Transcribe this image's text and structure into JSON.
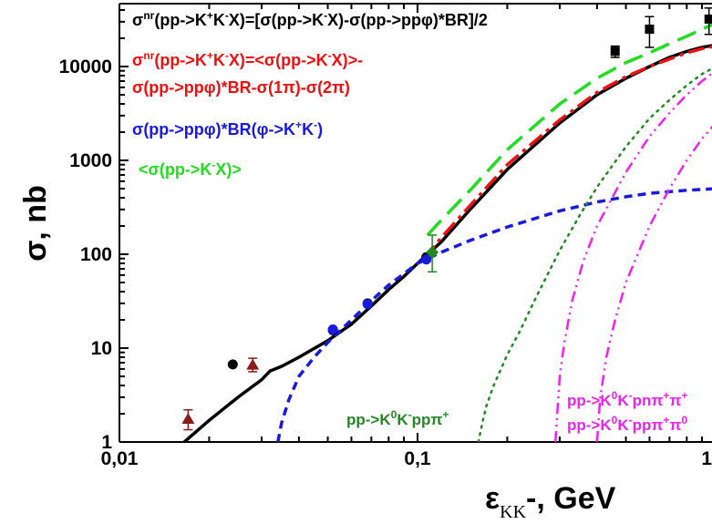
{
  "chart_data": {
    "type": "scatter",
    "x_scale": "log",
    "y_scale": "log",
    "xlim": [
      0.01,
      1.0
    ],
    "ylim": [
      1,
      40000
    ],
    "x_ticks": [
      {
        "value": 0.01,
        "label": "0,01"
      },
      {
        "value": 0.1,
        "label": "0,1"
      },
      {
        "value": 1.0,
        "label": "1"
      }
    ],
    "y_ticks": [
      {
        "value": 1,
        "label": "1"
      },
      {
        "value": 10,
        "label": "10"
      },
      {
        "value": 100,
        "label": "100"
      },
      {
        "value": 1000,
        "label": "1000"
      },
      {
        "value": 10000,
        "label": "10000"
      }
    ],
    "xlabel_main": "ε",
    "xlabel_sub": "KK",
    "xlabel_rest": "-,  GeV",
    "ylabel": "σ,  nb",
    "annotations": [
      {
        "id": "black",
        "color": "#000000",
        "lines": [
          "σnr(pp->K+K-X)=[σ(pp->K-X)-σ(pp->ppφ)*BR]/2"
        ]
      },
      {
        "id": "red",
        "color": "#ee1111",
        "lines": [
          "σnr(pp->K+K-X)=<σ(pp->K-X)>-",
          "σ(pp->ppφ)*BR-σ(1π)-σ(2π)"
        ]
      },
      {
        "id": "blue",
        "color": "#1a1adc",
        "lines": [
          "σ(pp->ppφ)*BR(φ->K+K-)"
        ]
      },
      {
        "id": "green",
        "color": "#22dd22",
        "lines": [
          "<σ(pp->K-X)>"
        ]
      },
      {
        "id": "darkgreen",
        "color": "#228822",
        "lines": [
          "pp->K0K-ppπ+"
        ]
      },
      {
        "id": "magenta1",
        "color": "#ee22ee",
        "lines": [
          "pp->K0K-pnπ+π+"
        ]
      },
      {
        "id": "magenta2",
        "color": "#ee22ee",
        "lines": [
          "pp->K0K-ppπ+π0"
        ]
      }
    ],
    "series": [
      {
        "style": "solid",
        "color": "#000000",
        "points": [
          [
            0.0165,
            1
          ],
          [
            0.02,
            1.7
          ],
          [
            0.025,
            3
          ],
          [
            0.03,
            4.6
          ],
          [
            0.032,
            5.7
          ],
          [
            0.035,
            6.4
          ],
          [
            0.04,
            8
          ],
          [
            0.05,
            12
          ],
          [
            0.06,
            18
          ],
          [
            0.07,
            28
          ],
          [
            0.08,
            42
          ],
          [
            0.09,
            58
          ],
          [
            0.1,
            80
          ],
          [
            0.12,
            135
          ],
          [
            0.15,
            300
          ],
          [
            0.2,
            800
          ],
          [
            0.3,
            2500
          ],
          [
            0.4,
            5000
          ],
          [
            0.5,
            7500
          ],
          [
            0.6,
            10000
          ],
          [
            0.7,
            12500
          ],
          [
            0.8,
            14500
          ],
          [
            0.9,
            16000
          ],
          [
            1.0,
            17000
          ]
        ]
      },
      {
        "style": "dashed",
        "color": "#1a1adc",
        "points": [
          [
            0.034,
            1
          ],
          [
            0.035,
            1.6
          ],
          [
            0.037,
            2.8
          ],
          [
            0.04,
            5
          ],
          [
            0.045,
            8
          ],
          [
            0.05,
            11.5
          ],
          [
            0.06,
            20
          ],
          [
            0.07,
            32
          ],
          [
            0.08,
            47
          ],
          [
            0.09,
            62
          ],
          [
            0.1,
            80
          ],
          [
            0.12,
            105
          ],
          [
            0.15,
            140
          ],
          [
            0.2,
            195
          ],
          [
            0.3,
            290
          ],
          [
            0.4,
            360
          ],
          [
            0.5,
            410
          ],
          [
            0.6,
            445
          ],
          [
            0.8,
            480
          ],
          [
            1.0,
            500
          ]
        ]
      },
      {
        "style": "dashdot",
        "color": "#ee1111",
        "points": [
          [
            0.105,
            90
          ],
          [
            0.12,
            150
          ],
          [
            0.15,
            330
          ],
          [
            0.2,
            900
          ],
          [
            0.3,
            2700
          ],
          [
            0.4,
            5300
          ],
          [
            0.5,
            7800
          ],
          [
            0.6,
            10000
          ],
          [
            0.7,
            12000
          ],
          [
            0.8,
            14000
          ],
          [
            0.9,
            15500
          ],
          [
            1.0,
            16500
          ]
        ]
      },
      {
        "style": "longdash",
        "color": "#22dd22",
        "points": [
          [
            0.108,
            160
          ],
          [
            0.12,
            230
          ],
          [
            0.15,
            480
          ],
          [
            0.2,
            1300
          ],
          [
            0.3,
            4000
          ],
          [
            0.4,
            7500
          ],
          [
            0.5,
            11000
          ],
          [
            0.6,
            14000
          ],
          [
            0.7,
            17500
          ],
          [
            0.8,
            21000
          ],
          [
            0.9,
            25000
          ],
          [
            1.0,
            29000
          ]
        ]
      },
      {
        "style": "dotted",
        "color": "#228822",
        "points": [
          [
            0.16,
            1
          ],
          [
            0.165,
            1.6
          ],
          [
            0.17,
            2.4
          ],
          [
            0.18,
            4
          ],
          [
            0.2,
            8.5
          ],
          [
            0.22,
            15
          ],
          [
            0.25,
            35
          ],
          [
            0.3,
            110
          ],
          [
            0.35,
            260
          ],
          [
            0.4,
            520
          ],
          [
            0.5,
            1400
          ],
          [
            0.6,
            2800
          ],
          [
            0.7,
            4400
          ],
          [
            0.8,
            6300
          ],
          [
            0.9,
            8300
          ],
          [
            1.0,
            10000
          ]
        ]
      },
      {
        "style": "dashdotdot",
        "color": "#ee22ee",
        "points": [
          [
            0.29,
            1
          ],
          [
            0.3,
            5
          ],
          [
            0.31,
            11
          ],
          [
            0.33,
            32
          ],
          [
            0.36,
            85
          ],
          [
            0.4,
            200
          ],
          [
            0.5,
            750
          ],
          [
            0.6,
            1800
          ],
          [
            0.7,
            3200
          ],
          [
            0.8,
            5000
          ],
          [
            0.9,
            7000
          ],
          [
            1.0,
            9000
          ]
        ]
      },
      {
        "style": "dashdotdot",
        "color": "#ee22ee",
        "points": [
          [
            0.4,
            1
          ],
          [
            0.41,
            3
          ],
          [
            0.43,
            8
          ],
          [
            0.46,
            20
          ],
          [
            0.5,
            50
          ],
          [
            0.6,
            200
          ],
          [
            0.7,
            500
          ],
          [
            0.8,
            1000
          ],
          [
            0.9,
            1700
          ],
          [
            1.0,
            2500
          ]
        ]
      }
    ],
    "markers": [
      {
        "shape": "triangle",
        "color": "#8b1a1a",
        "x": 0.017,
        "y": 1.75,
        "err": [
          1.35,
          2.2
        ]
      },
      {
        "shape": "triangle",
        "color": "#8b1a1a",
        "x": 0.028,
        "y": 6.6,
        "err": [
          5.6,
          7.8
        ]
      },
      {
        "shape": "circle",
        "color": "#000000",
        "x": 0.024,
        "y": 6.7
      },
      {
        "shape": "circle",
        "color": "#000000",
        "x": 0.052,
        "y": 15.5
      },
      {
        "shape": "circle",
        "color": "#000000",
        "x": 0.068,
        "y": 30
      },
      {
        "shape": "circle",
        "color": "#000000",
        "x": 0.107,
        "y": 93
      },
      {
        "shape": "circle",
        "color": "#1a1adc",
        "x": 0.052,
        "y": 15.8
      },
      {
        "shape": "circle",
        "color": "#1a1adc",
        "x": 0.068,
        "y": 29.5
      },
      {
        "shape": "circle",
        "color": "#1a1adc",
        "x": 0.107,
        "y": 88
      },
      {
        "shape": "diamond",
        "color": "#228822",
        "x": 0.112,
        "y": 105,
        "err": [
          65,
          160
        ]
      },
      {
        "shape": "square",
        "color": "#000000",
        "x": 0.46,
        "y": 14500,
        "err": [
          12500,
          16500
        ]
      },
      {
        "shape": "square",
        "color": "#000000",
        "x": 0.6,
        "y": 25000,
        "err": [
          16000,
          34000
        ]
      },
      {
        "shape": "square",
        "color": "#000000",
        "x": 0.95,
        "y": 32000,
        "err": [
          22000,
          42000
        ]
      }
    ]
  }
}
